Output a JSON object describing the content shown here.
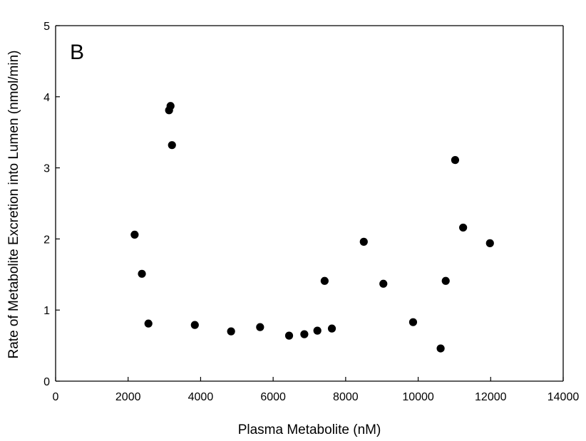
{
  "chart_data": {
    "type": "scatter",
    "panel_label": "B",
    "title": "",
    "xlabel": "Plasma Metabolite (nM)",
    "ylabel": "Rate of Metabolite Excretion into Lumen (nmol/min)",
    "xlim": [
      0,
      14000
    ],
    "ylim": [
      0,
      5
    ],
    "xticks": [
      0,
      2000,
      4000,
      6000,
      8000,
      10000,
      12000,
      14000
    ],
    "yticks": [
      0,
      1,
      2,
      3,
      4,
      5
    ],
    "grid": false,
    "legend": "none",
    "marker_color": "#000000",
    "points": [
      {
        "x": 2180,
        "y": 2.06
      },
      {
        "x": 2380,
        "y": 1.51
      },
      {
        "x": 2560,
        "y": 0.81
      },
      {
        "x": 3130,
        "y": 3.81
      },
      {
        "x": 3170,
        "y": 3.87
      },
      {
        "x": 3210,
        "y": 3.32
      },
      {
        "x": 3840,
        "y": 0.79
      },
      {
        "x": 4840,
        "y": 0.7
      },
      {
        "x": 5640,
        "y": 0.76
      },
      {
        "x": 6440,
        "y": 0.64
      },
      {
        "x": 6860,
        "y": 0.66
      },
      {
        "x": 7220,
        "y": 0.71
      },
      {
        "x": 7420,
        "y": 1.41
      },
      {
        "x": 7620,
        "y": 0.74
      },
      {
        "x": 8500,
        "y": 1.96
      },
      {
        "x": 9040,
        "y": 1.37
      },
      {
        "x": 9860,
        "y": 0.83
      },
      {
        "x": 10620,
        "y": 0.46
      },
      {
        "x": 10760,
        "y": 1.41
      },
      {
        "x": 11020,
        "y": 3.11
      },
      {
        "x": 11240,
        "y": 2.16
      },
      {
        "x": 11980,
        "y": 1.94
      }
    ]
  }
}
